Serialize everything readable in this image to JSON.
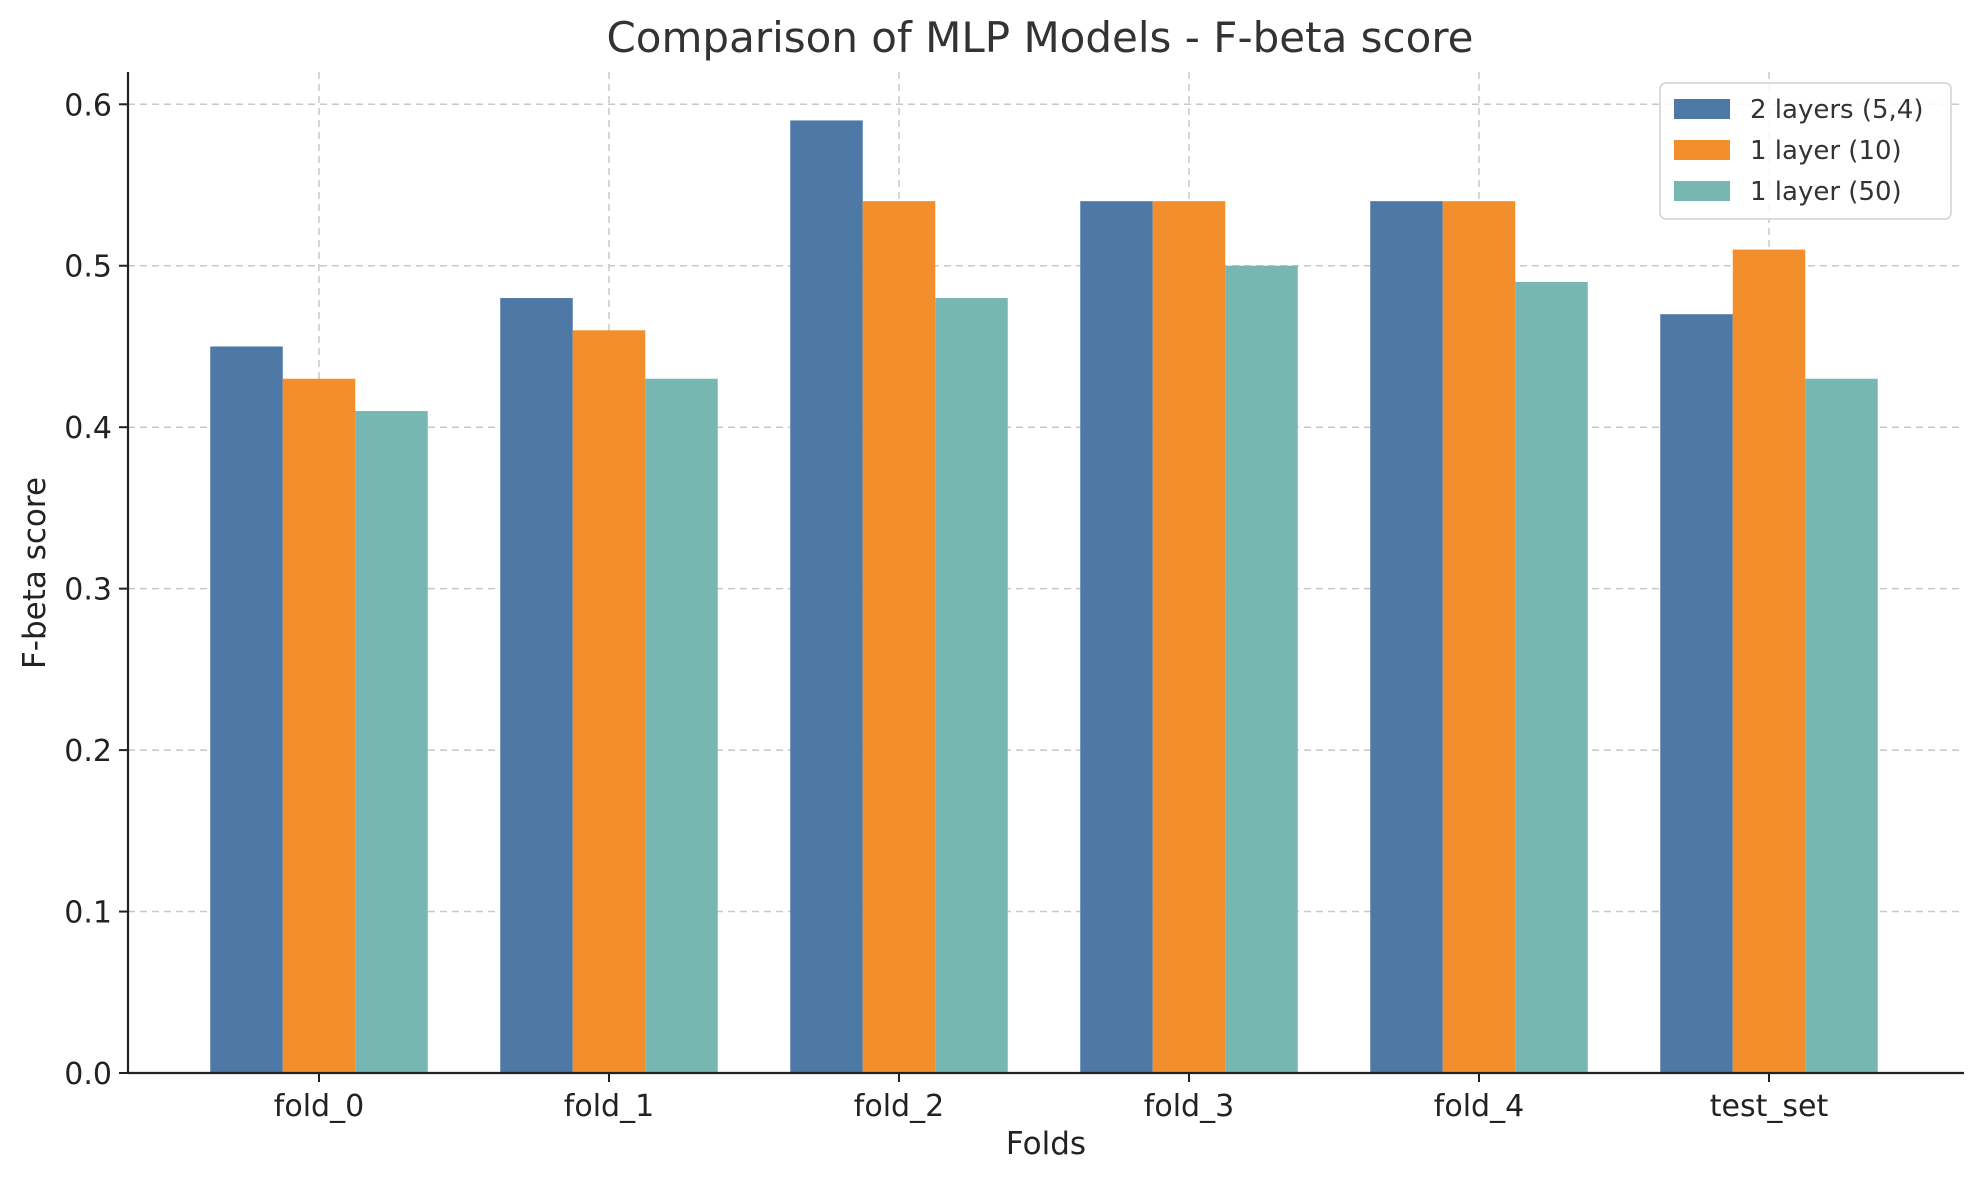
{
  "chart_data": {
    "type": "bar",
    "title": "Comparison of MLP Models - F-beta score",
    "xlabel": "Folds",
    "ylabel": "F-beta score",
    "categories": [
      "fold_0",
      "fold_1",
      "fold_2",
      "fold_3",
      "fold_4",
      "test_set"
    ],
    "series": [
      {
        "name": "2 layers (5,4)",
        "color": "#4e79a7",
        "values": [
          0.45,
          0.48,
          0.59,
          0.54,
          0.54,
          0.47
        ]
      },
      {
        "name": "1 layer (10)",
        "color": "#f28e2b",
        "values": [
          0.43,
          0.46,
          0.54,
          0.54,
          0.54,
          0.51
        ]
      },
      {
        "name": "1 layer (50)",
        "color": "#76b7b2",
        "values": [
          0.41,
          0.43,
          0.48,
          0.5,
          0.49,
          0.43
        ]
      }
    ],
    "ylim": [
      0,
      0.62
    ],
    "yticks": [
      "0.0",
      "0.1",
      "0.2",
      "0.3",
      "0.4",
      "0.5",
      "0.6"
    ],
    "grid": true,
    "legend_position": "top-right"
  }
}
